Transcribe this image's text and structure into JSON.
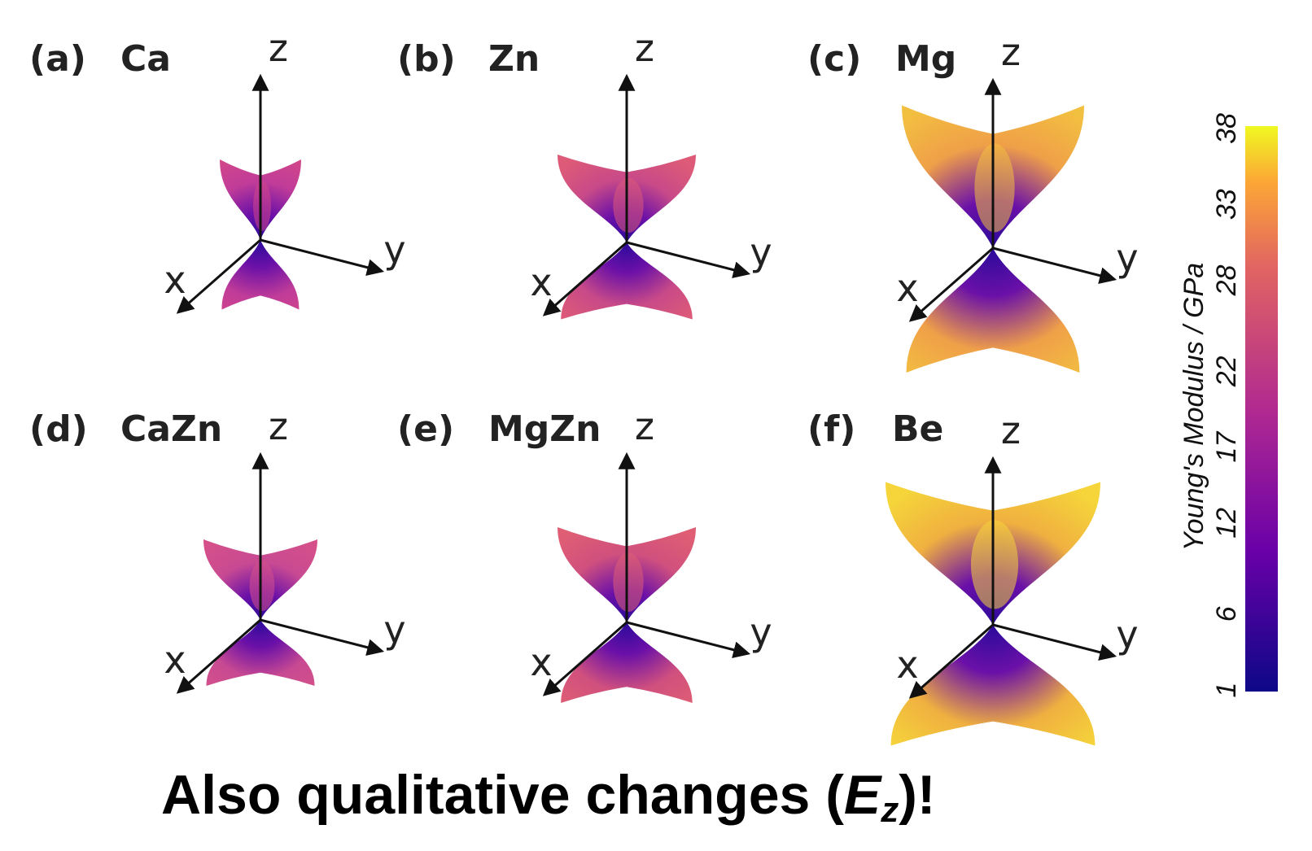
{
  "panels": [
    {
      "label": "(a)",
      "element": "Ca",
      "axes": {
        "z": "z",
        "x": "x",
        "y": "y"
      }
    },
    {
      "label": "(b)",
      "element": "Zn",
      "axes": {
        "z": "z",
        "x": "x",
        "y": "y"
      }
    },
    {
      "label": "(c)",
      "element": "Mg",
      "axes": {
        "z": "z",
        "x": "x",
        "y": "y"
      }
    },
    {
      "label": "(d)",
      "element": "CaZn",
      "axes": {
        "z": "z",
        "x": "x",
        "y": "y"
      }
    },
    {
      "label": "(e)",
      "element": "MgZn",
      "axes": {
        "z": "z",
        "x": "x",
        "y": "y"
      }
    },
    {
      "label": "(f)",
      "element": "Be",
      "axes": {
        "z": "z",
        "x": "x",
        "y": "y"
      }
    }
  ],
  "colorbar": {
    "label": "Young's Modulus / GPa",
    "ticks": [
      1,
      6,
      12,
      17,
      22,
      28,
      33,
      38
    ]
  },
  "caption": {
    "before": "Also qualitative changes (",
    "symbol": "E",
    "subscript": "z",
    "after": ")!"
  }
}
